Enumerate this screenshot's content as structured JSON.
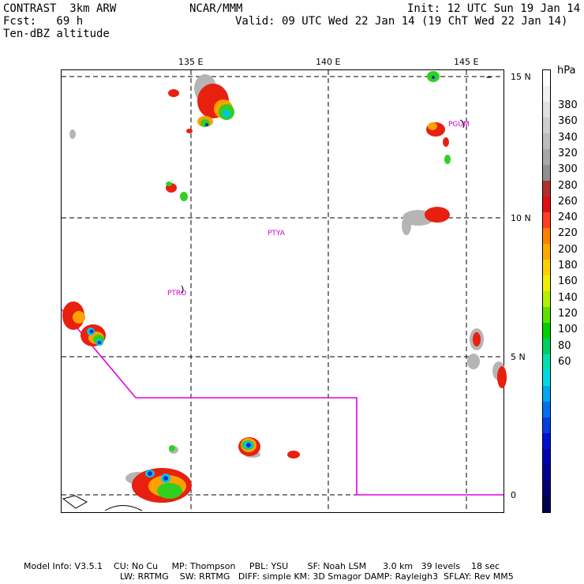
{
  "header": {
    "model": "CONTRAST  3km ARW",
    "org": "NCAR/MMM",
    "init": "Init: 12 UTC Sun 19 Jan 14",
    "fcst": "Fcst:   69 h",
    "valid": "Valid: 09 UTC Wed 22 Jan 14 (19 ChT Wed 22 Jan 14)",
    "field": "Ten-dBZ altitude"
  },
  "map": {
    "lon_labels": [
      "135 E",
      "140 E",
      "145 E"
    ],
    "lat_labels": [
      "15 N",
      "10 N",
      "5 N",
      "0"
    ],
    "stations": [
      "PGUM",
      "PTYA",
      "PTRO"
    ]
  },
  "colorbar": {
    "unit": "hPa",
    "labels": [
      "380",
      "360",
      "340",
      "320",
      "300",
      "280",
      "260",
      "240",
      "220",
      "200",
      "180",
      "160",
      "140",
      "120",
      "100",
      "80",
      "60"
    ],
    "colors": [
      "#ffffff",
      "#f0f0f0",
      "#e0e0e0",
      "#cfcfcf",
      "#bdbdbd",
      "#a8a8a8",
      "#909090",
      "#b03030",
      "#e01010",
      "#ff4020",
      "#ff8000",
      "#ffa800",
      "#ffd000",
      "#f0f000",
      "#b0f000",
      "#60e000",
      "#00d000",
      "#00d060",
      "#00e0b0",
      "#00d8e8",
      "#00a8f0",
      "#0070f0",
      "#0040e0",
      "#0010d0",
      "#0000b0",
      "#000090",
      "#000070",
      "#000050"
    ]
  },
  "footer": {
    "line1": "Model Info: V3.5.1    CU: No Cu     MP: Thompson     PBL: YSU       SF: Noah LSM      3.0 km   39 levels    18 sec",
    "line2": "LW: RRTMG    SW: RRTMG   DIFF: simple KM: 3D Smagor DAMP: Rayleigh3  SFLAY: Rev MM5"
  }
}
